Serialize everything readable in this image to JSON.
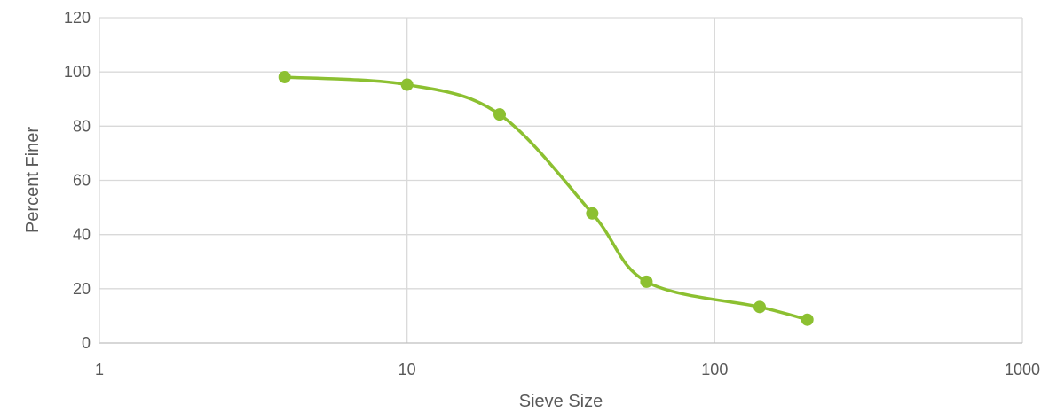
{
  "chart_data": {
    "type": "scatter",
    "title": "",
    "xlabel": "Sieve Size",
    "ylabel": "Percent Finer",
    "x_scale": "log",
    "xlim": [
      1,
      1000
    ],
    "ylim": [
      0,
      120
    ],
    "x_ticks": [
      "1",
      "10",
      "100",
      "1000"
    ],
    "y_ticks": [
      "0",
      "20",
      "40",
      "60",
      "80",
      "100",
      "120"
    ],
    "grid": true,
    "smooth_line": true,
    "series": [
      {
        "x": [
          4,
          10,
          20,
          40,
          60,
          140,
          200
        ],
        "y": [
          98.1,
          95.3,
          84.3,
          47.8,
          22.6,
          13.3,
          8.6
        ]
      }
    ],
    "colors": {
      "series": "#8cc031",
      "grid": "#d9d9d9",
      "text": "#595959"
    }
  }
}
